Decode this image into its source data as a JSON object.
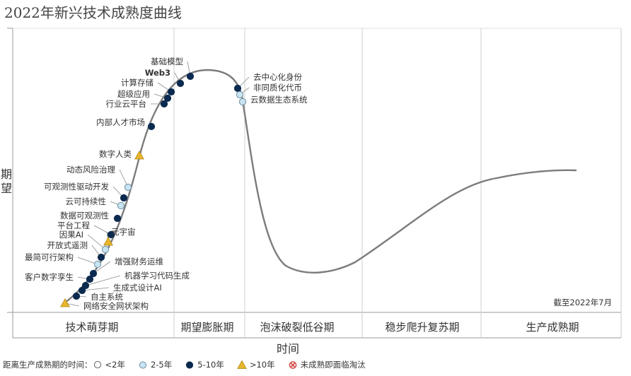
{
  "title": "2022年新兴技术成熟度曲线",
  "y_axis_label": "期望",
  "x_axis_label": "时间",
  "as_of_note": "截至2022年7月",
  "phases": [
    "技术萌芽期",
    "期望膨胀期",
    "泡沫破裂低谷期",
    "稳步爬升复苏期",
    "生产成熟期"
  ],
  "legend": {
    "prefix": "距离生产成熟期的时间：",
    "items": [
      {
        "key": "lt2",
        "label": "<2年",
        "shape": "circle",
        "color": "#ffffff"
      },
      {
        "key": "y2to5",
        "label": "2-5年",
        "shape": "circle",
        "color": "#c9e4f1"
      },
      {
        "key": "y5to10",
        "label": "5-10年",
        "shape": "circle",
        "color": "#0b2a4f"
      },
      {
        "key": "gt10",
        "label": ">10年",
        "shape": "triangle",
        "color": "#e8b62c"
      },
      {
        "key": "obsolete",
        "label": "未成熟即面临淘汰",
        "shape": "x-circle",
        "color": "#d23a3a"
      }
    ]
  },
  "chart_data": {
    "type": "scatter",
    "title": "2022年新兴技术成熟度曲线",
    "xlabel": "时间",
    "ylabel": "期望",
    "note": "截至2022年7月",
    "categories": [
      "技术萌芽期",
      "期望膨胀期",
      "泡沫破裂低谷期",
      "稳步爬升复苏期",
      "生产成熟期"
    ],
    "points": [
      {
        "name": "网络安全网状架构",
        "category": "gt10"
      },
      {
        "name": "自主系统",
        "category": "y5to10"
      },
      {
        "name": "生成式设计AI",
        "category": "y5to10"
      },
      {
        "name": "机器学习代码生成",
        "category": "y5to10"
      },
      {
        "name": "客户数字孪生",
        "category": "y5to10"
      },
      {
        "name": "增强财务运维",
        "category": "y5to10"
      },
      {
        "name": "最简可行架构",
        "category": "y2to5"
      },
      {
        "name": "开放式遥测",
        "category": "y5to10"
      },
      {
        "name": "因果AI",
        "category": "y2to5"
      },
      {
        "name": "元宇宙",
        "category": "gt10"
      },
      {
        "name": "平台工程",
        "category": "y5to10"
      },
      {
        "name": "数据可观测性",
        "category": "y5to10"
      },
      {
        "name": "云可持续性",
        "category": "y2to5"
      },
      {
        "name": "可观测性驱动开发",
        "category": "y5to10"
      },
      {
        "name": "动态风险治理",
        "category": "y2to5"
      },
      {
        "name": "数字人类",
        "category": "gt10"
      },
      {
        "name": "内部人才市场",
        "category": "y5to10"
      },
      {
        "name": "行业云平台",
        "category": "y5to10"
      },
      {
        "name": "超级应用",
        "category": "y5to10"
      },
      {
        "name": "计算存储",
        "category": "y5to10"
      },
      {
        "name": "Web3",
        "category": "y5to10"
      },
      {
        "name": "基础模型",
        "category": "y5to10"
      },
      {
        "name": "去中心化身份",
        "category": "y5to10"
      },
      {
        "name": "非同质化代币",
        "category": "y2to5"
      },
      {
        "name": "云数据生态系统",
        "category": "y2to5"
      }
    ]
  }
}
